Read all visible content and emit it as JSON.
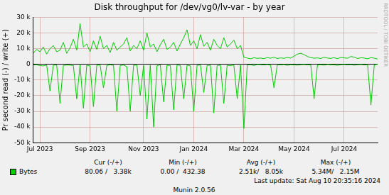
{
  "chart_data": {
    "type": "line",
    "title": "Disk throughput for /dev/vg0/lv-var - by year",
    "y_label": "Pr second read (-) / write (+)",
    "categories": [
      null,
      null,
      "Jul 2023",
      null,
      null,
      null,
      null,
      null,
      null,
      null,
      null,
      null,
      null,
      null,
      null,
      null,
      null,
      "Sep 2023",
      null,
      null,
      null,
      null,
      null,
      null,
      null,
      null,
      null,
      null,
      null,
      null,
      null,
      null,
      null,
      "Nov 2023",
      null,
      null,
      null,
      null,
      null,
      null,
      null,
      null,
      null,
      null,
      null,
      null,
      null,
      null,
      "Jan 2024",
      null,
      null,
      null,
      null,
      null,
      null,
      null,
      null,
      null,
      null,
      null,
      null,
      null,
      null,
      "Mar 2024",
      null,
      null,
      null,
      null,
      null,
      null,
      null,
      null,
      null,
      null,
      null,
      null,
      null,
      null,
      "May 2024",
      null,
      null,
      null,
      null,
      null,
      null,
      null,
      null,
      null,
      null,
      null,
      null,
      null,
      null,
      "Jul 2024",
      null,
      null,
      null,
      null,
      null,
      null,
      null,
      null,
      null,
      null
    ],
    "series": [
      {
        "name": "Bytes",
        "color": "#00cc00",
        "values": [
          7000,
          9500,
          8000,
          11000,
          6500,
          10000,
          12000,
          8000,
          9000,
          14000,
          7000,
          10500,
          16000,
          9000,
          26000,
          11000,
          13000,
          8000,
          15000,
          9500,
          18000,
          10000,
          12000,
          7500,
          14000,
          9000,
          11000,
          13000,
          17000,
          8500,
          12000,
          10000,
          15000,
          9000,
          20000,
          11000,
          13000,
          8000,
          12500,
          16000,
          9500,
          11000,
          14000,
          8500,
          13000,
          17000,
          22000,
          12000,
          15000,
          10000,
          19000,
          11500,
          14000,
          9000,
          16000,
          12000,
          10000,
          17000,
          11000,
          13000,
          15500,
          10000,
          12000,
          4500,
          4000,
          3500,
          4200,
          3800,
          4000,
          3600,
          4300,
          3900,
          4500,
          3700,
          4100,
          3800,
          4400,
          4000,
          5200,
          6500,
          7000,
          6200,
          5000,
          4300,
          3900,
          4100,
          3700,
          4500,
          4000,
          3800,
          4200,
          3600,
          4400,
          4100,
          3900,
          5000,
          4600,
          3700,
          4200,
          4000,
          3500,
          4300,
          3900,
          3380
        ]
      },
      {
        "color": "#00cc00",
        "values": [
          -500,
          -300,
          -800,
          -1000,
          -400,
          -17000,
          -600,
          -300,
          -25000,
          -700,
          -400,
          -500,
          -800,
          -22000,
          -300,
          -28000,
          -600,
          -1000,
          -27000,
          -500,
          -400,
          -15000,
          -700,
          -300,
          -600,
          -30000,
          -800,
          -400,
          -1500,
          -30000,
          -600,
          -400,
          -20000,
          -700,
          -35000,
          -500,
          -40000,
          -900,
          -300,
          -24000,
          -600,
          -800,
          -29000,
          -400,
          -700,
          -22000,
          -500,
          -1000,
          -30000,
          -600,
          -400,
          -18000,
          -700,
          -500,
          -31000,
          -800,
          -400,
          -25000,
          -600,
          -900,
          -300,
          -22000,
          -500,
          -41000,
          -400,
          -300,
          -700,
          -200,
          -300,
          -400,
          -200,
          -500,
          -15000,
          -300,
          -400,
          -200,
          -600,
          -300,
          -400,
          -500,
          -300,
          -200,
          -400,
          -300,
          -22000,
          -400,
          -300,
          -500,
          -200,
          -300,
          -400,
          -600,
          -300,
          -200,
          -400,
          -300,
          -500,
          -300,
          -200,
          -400,
          -300,
          -26000,
          -300,
          -80.06
        ]
      }
    ],
    "ylim": [
      -50000,
      30000
    ],
    "yticks": [
      {
        "value": -50000,
        "label": "-50 k"
      },
      {
        "value": -40000,
        "label": "-40 k"
      },
      {
        "value": -30000,
        "label": "-30 k"
      },
      {
        "value": -20000,
        "label": "-20 k"
      },
      {
        "value": -10000,
        "label": "-10 k"
      },
      0,
      {
        "value": 10000,
        "label": "10 k"
      },
      {
        "value": 20000,
        "label": "20 k"
      },
      {
        "value": 30000,
        "label": "30 k"
      }
    ],
    "grid": true,
    "legend_table": {
      "headers": [
        "Cur (-/+)",
        "Min (-/+)",
        "Avg (-/+)",
        "Max (-/+)"
      ],
      "row_label": "Bytes",
      "cells": [
        "80.06 /   3.38k",
        "0.00 /  432.38",
        "2.51k/   8.05k",
        "5.34M/   2.15M"
      ]
    },
    "last_update": "Last update: Sat Aug 10 20:35:16 2024",
    "credit": "Munin 2.0.56",
    "watermark": "RRDTOOL / TOBI OETIKER"
  }
}
